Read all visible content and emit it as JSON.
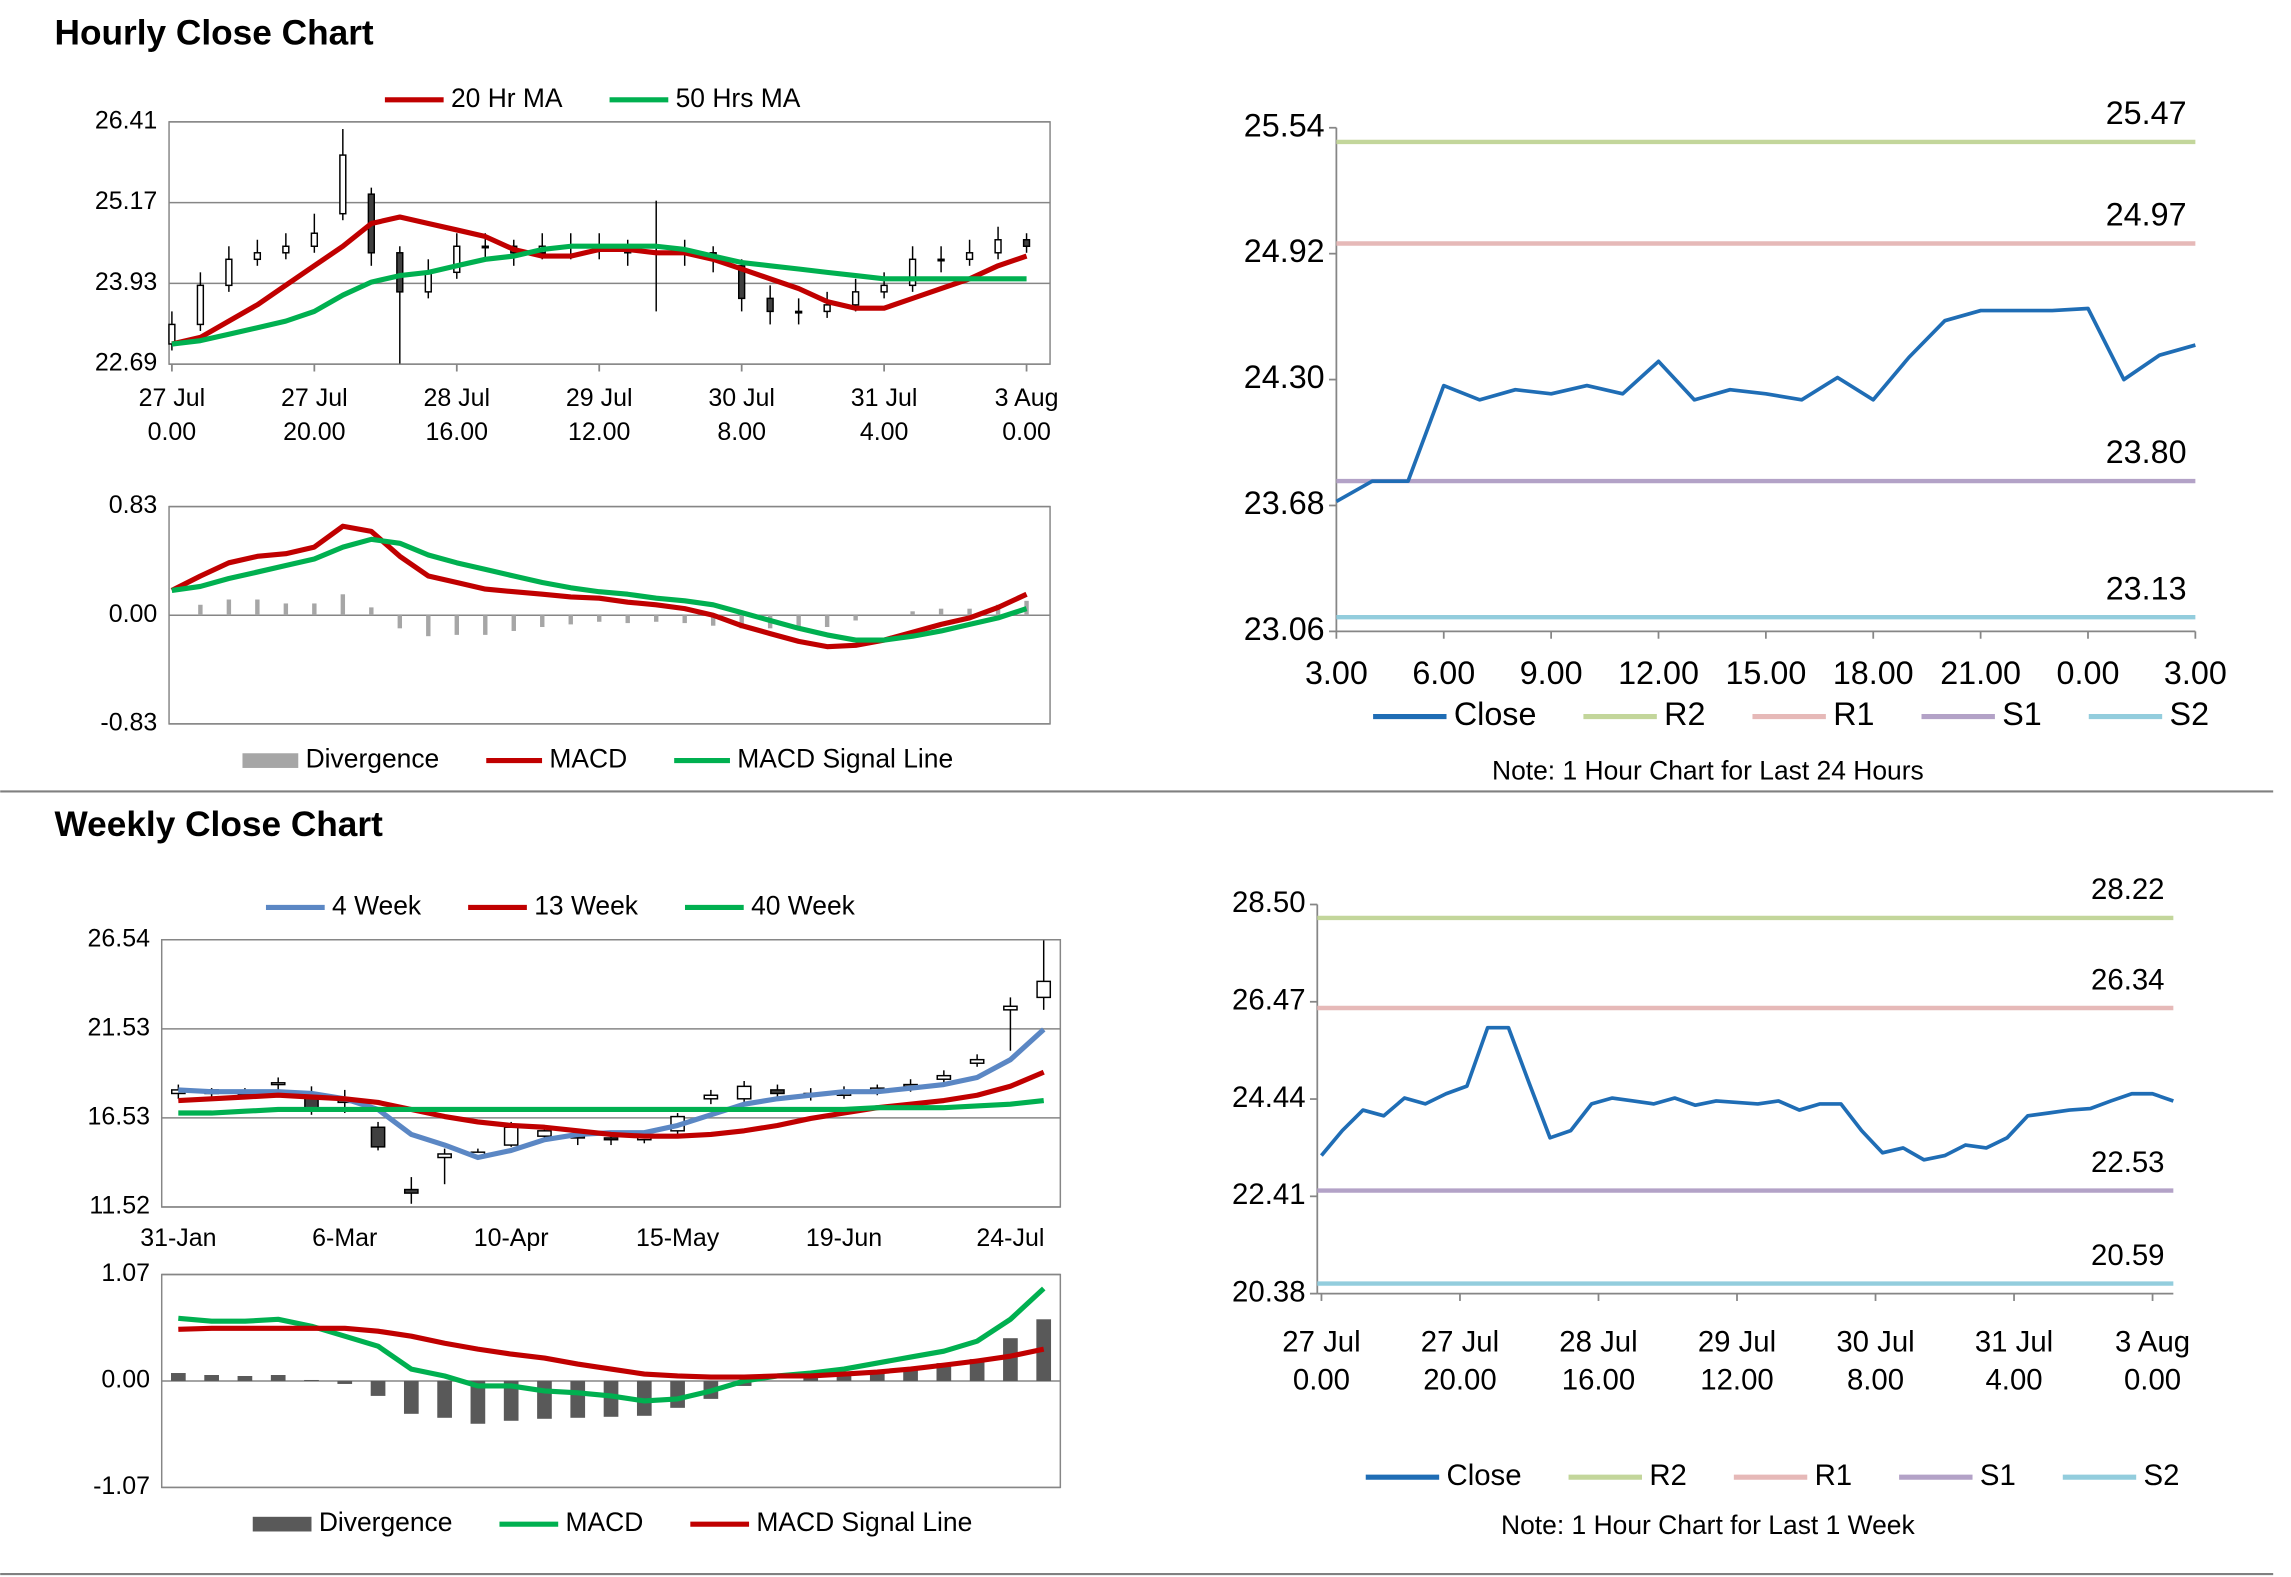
{
  "headings": [
    "Hourly Close Chart",
    "Weekly Close Chart"
  ],
  "chart_data": [
    {
      "type": "candlestick",
      "x": [
        0,
        4,
        8,
        12,
        16,
        20,
        24,
        28,
        32,
        36,
        40,
        44,
        48,
        52,
        56,
        60,
        64,
        68,
        72,
        76,
        80,
        84,
        88,
        92,
        96,
        100,
        104,
        108,
        112,
        116,
        120
      ],
      "xlim": [
        -0.4,
        123.3
      ],
      "xticks": [
        {
          "value": 0,
          "date": "27 Jul",
          "time": "0.00"
        },
        {
          "value": 20,
          "date": "27 Jul",
          "time": "20.00"
        },
        {
          "value": 40,
          "date": "28 Jul",
          "time": "16.00"
        },
        {
          "value": 60,
          "date": "29 Jul",
          "time": "12.00"
        },
        {
          "value": 80,
          "date": "30 Jul",
          "time": "8.00"
        },
        {
          "value": 100,
          "date": "31 Jul",
          "time": "4.00"
        },
        {
          "value": 120,
          "date": "3 Aug",
          "time": "0.00"
        }
      ],
      "open": [
        23.0,
        23.3,
        23.9,
        24.3,
        24.4,
        24.5,
        25.0,
        25.3,
        24.4,
        23.8,
        24.1,
        24.5,
        24.5,
        24.4,
        24.5,
        24.5,
        24.5,
        24.4,
        24.4,
        24.4,
        24.2,
        23.7,
        23.5,
        23.5,
        23.6,
        23.8,
        23.9,
        24.3,
        24.3,
        24.4,
        24.6
      ],
      "high": [
        23.5,
        24.1,
        24.5,
        24.6,
        24.7,
        25.0,
        26.3,
        25.4,
        24.5,
        24.3,
        24.7,
        24.7,
        24.6,
        24.7,
        24.7,
        24.7,
        24.6,
        25.2,
        24.6,
        24.5,
        24.3,
        23.9,
        23.7,
        23.8,
        24.0,
        24.1,
        24.5,
        24.5,
        24.6,
        24.8,
        24.7
      ],
      "low": [
        22.9,
        23.2,
        23.8,
        24.2,
        24.3,
        24.4,
        24.9,
        24.2,
        22.7,
        23.7,
        24.0,
        24.3,
        24.2,
        24.3,
        24.3,
        24.3,
        24.2,
        23.5,
        24.2,
        24.1,
        23.5,
        23.3,
        23.3,
        23.4,
        23.5,
        23.7,
        23.8,
        24.1,
        24.2,
        24.3,
        24.4
      ],
      "close": [
        23.3,
        23.9,
        24.3,
        24.4,
        24.5,
        24.7,
        25.9,
        24.4,
        23.8,
        24.1,
        24.5,
        24.5,
        24.4,
        24.5,
        24.5,
        24.5,
        24.4,
        24.4,
        24.4,
        24.3,
        23.7,
        23.5,
        23.5,
        23.6,
        23.8,
        23.9,
        24.3,
        24.3,
        24.4,
        24.6,
        24.5
      ],
      "series": [
        {
          "name": "20 Hr MA",
          "color": "#c00000",
          "values": [
            23.0,
            23.1,
            23.35,
            23.6,
            23.9,
            24.2,
            24.5,
            24.85,
            24.95,
            24.85,
            24.75,
            24.65,
            24.45,
            24.35,
            24.35,
            24.45,
            24.45,
            24.4,
            24.4,
            24.3,
            24.15,
            24.0,
            23.85,
            23.65,
            23.55,
            23.55,
            23.7,
            23.85,
            24.0,
            24.2,
            24.35
          ]
        },
        {
          "name": "50 Hrs MA",
          "color": "#00b050",
          "values": [
            23.0,
            23.05,
            23.15,
            23.25,
            23.35,
            23.5,
            23.75,
            23.95,
            24.05,
            24.1,
            24.2,
            24.3,
            24.35,
            24.45,
            24.5,
            24.5,
            24.5,
            24.5,
            24.45,
            24.35,
            24.25,
            24.2,
            24.15,
            24.1,
            24.05,
            24.0,
            24.0,
            24.0,
            24.0,
            24.0,
            24.0
          ]
        }
      ],
      "ylim": [
        22.69,
        26.41
      ],
      "yticks": [
        22.69,
        23.93,
        25.17,
        26.41
      ],
      "grid": true
    },
    {
      "type": "macd",
      "x": [
        0,
        4,
        8,
        12,
        16,
        20,
        24,
        28,
        32,
        36,
        40,
        44,
        48,
        52,
        56,
        60,
        64,
        68,
        72,
        76,
        80,
        84,
        88,
        92,
        96,
        100,
        104,
        108,
        112,
        116,
        120
      ],
      "xlim": [
        -0.4,
        123.3
      ],
      "series": [
        {
          "name": "Divergence",
          "kind": "bar",
          "color": "#a6a6a6",
          "values": [
            0,
            0.08,
            0.12,
            0.12,
            0.09,
            0.09,
            0.16,
            0.06,
            -0.1,
            -0.16,
            -0.15,
            -0.15,
            -0.12,
            -0.09,
            -0.07,
            -0.05,
            -0.06,
            -0.05,
            -0.06,
            -0.08,
            -0.1,
            -0.1,
            -0.1,
            -0.09,
            -0.04,
            0,
            0.03,
            0.05,
            0.05,
            0.08,
            0.11
          ]
        },
        {
          "name": "MACD",
          "color": "#c00000",
          "values": [
            0.19,
            0.3,
            0.4,
            0.45,
            0.47,
            0.52,
            0.68,
            0.64,
            0.45,
            0.3,
            0.25,
            0.2,
            0.18,
            0.16,
            0.14,
            0.13,
            0.1,
            0.08,
            0.05,
            0.0,
            -0.08,
            -0.14,
            -0.2,
            -0.24,
            -0.23,
            -0.19,
            -0.13,
            -0.07,
            -0.02,
            0.06,
            0.16
          ]
        },
        {
          "name": "MACD Signal Line",
          "color": "#00b050",
          "values": [
            0.19,
            0.22,
            0.28,
            0.33,
            0.38,
            0.43,
            0.52,
            0.58,
            0.55,
            0.46,
            0.4,
            0.35,
            0.3,
            0.25,
            0.21,
            0.18,
            0.16,
            0.13,
            0.11,
            0.08,
            0.02,
            -0.04,
            -0.1,
            -0.15,
            -0.19,
            -0.19,
            -0.16,
            -0.12,
            -0.07,
            -0.02,
            0.05
          ]
        }
      ],
      "ylim": [
        -0.83,
        0.83
      ],
      "yticks": [
        -0.83,
        {
          "value": 0,
          "label": "0.00"
        },
        0.83
      ],
      "grid": true
    },
    {
      "type": "line",
      "x": [
        0,
        1,
        2,
        3,
        4,
        5,
        6,
        7,
        8,
        9,
        10,
        11,
        12,
        13,
        14,
        15,
        16,
        17,
        18,
        19,
        20,
        21,
        22,
        23,
        24
      ],
      "xlim": [
        0,
        24
      ],
      "xticks": [
        {
          "value": 0,
          "label": "3.00"
        },
        {
          "value": 3,
          "label": "6.00"
        },
        {
          "value": 6,
          "label": "9.00"
        },
        {
          "value": 9,
          "label": "12.00"
        },
        {
          "value": 12,
          "label": "15.00"
        },
        {
          "value": 15,
          "label": "18.00"
        },
        {
          "value": 18,
          "label": "21.00"
        },
        {
          "value": 21,
          "label": "0.00"
        },
        {
          "value": 24,
          "label": "3.00"
        }
      ],
      "series": [
        {
          "name": "Close",
          "color": "#1f6db5",
          "values": [
            23.7,
            23.8,
            23.8,
            24.27,
            24.2,
            24.25,
            24.23,
            24.27,
            24.23,
            24.39,
            24.2,
            24.25,
            24.23,
            24.2,
            24.31,
            24.2,
            24.41,
            24.59,
            24.64,
            24.64,
            24.64,
            24.65,
            24.3,
            24.42,
            24.47
          ]
        }
      ],
      "levels": [
        {
          "name": "R2",
          "color": "#c3d69b",
          "value": 25.47
        },
        {
          "name": "R1",
          "color": "#e6b9b8",
          "value": 24.97
        },
        {
          "name": "S1",
          "color": "#b3a2c7",
          "value": 23.8,
          "value_label": "23.80"
        },
        {
          "name": "S2",
          "color": "#93cddd",
          "value": 23.13
        }
      ],
      "ylim": [
        23.06,
        25.54
      ],
      "yticks": [
        23.06,
        23.68,
        {
          "value": 24.3,
          "label": "24.30"
        },
        24.92,
        25.54
      ],
      "note": "Note: 1 Hour Chart for Last 24 Hours"
    },
    {
      "type": "candlestick",
      "categories": [
        "31-Jan",
        null,
        null,
        null,
        null,
        "6-Mar",
        null,
        null,
        null,
        null,
        "10-Apr",
        null,
        null,
        null,
        null,
        "15-May",
        null,
        null,
        null,
        null,
        "19-Jun",
        null,
        null,
        null,
        null,
        "24-Jul",
        null
      ],
      "open": [
        17.9,
        18.1,
        17.9,
        18.4,
        17.9,
        17.4,
        16.0,
        12.5,
        14.3,
        14.4,
        15.0,
        15.5,
        15.6,
        15.4,
        15.3,
        15.8,
        17.6,
        17.6,
        18.1,
        17.8,
        17.8,
        18.0,
        18.3,
        18.7,
        19.6,
        22.6,
        23.3
      ],
      "high": [
        18.4,
        18.2,
        18.2,
        18.8,
        18.3,
        18.1,
        16.3,
        13.2,
        14.8,
        14.8,
        16.3,
        16.1,
        15.9,
        15.8,
        15.8,
        16.8,
        18.1,
        18.6,
        18.4,
        18.2,
        18.3,
        18.4,
        18.7,
        19.2,
        20.1,
        23.3,
        26.5
      ],
      "low": [
        17.6,
        17.7,
        17.6,
        18.1,
        16.7,
        16.8,
        14.7,
        11.7,
        12.8,
        14.2,
        14.9,
        15.3,
        15.0,
        15.0,
        15.1,
        15.6,
        17.3,
        17.4,
        17.6,
        17.5,
        17.6,
        17.8,
        18.0,
        18.5,
        19.4,
        20.3,
        22.6
      ],
      "close": [
        18.1,
        17.9,
        17.9,
        18.5,
        16.9,
        17.5,
        14.9,
        12.3,
        14.5,
        14.6,
        16.0,
        15.8,
        15.4,
        15.3,
        15.5,
        16.6,
        17.8,
        18.3,
        17.9,
        17.9,
        18.0,
        18.2,
        18.4,
        18.9,
        19.8,
        22.8,
        24.2
      ],
      "series": [
        {
          "name": "4 Week",
          "color": "#5b87c4",
          "values": [
            18.1,
            18.0,
            18.0,
            18.0,
            17.9,
            17.6,
            17.0,
            15.6,
            15.0,
            14.3,
            14.7,
            15.3,
            15.6,
            15.7,
            15.7,
            16.1,
            16.7,
            17.3,
            17.6,
            17.8,
            18.0,
            18.0,
            18.2,
            18.4,
            18.8,
            19.8,
            21.5
          ]
        },
        {
          "name": "13 Week",
          "color": "#c00000",
          "values": [
            17.5,
            17.6,
            17.7,
            17.8,
            17.7,
            17.6,
            17.4,
            17.0,
            16.6,
            16.3,
            16.1,
            16.0,
            15.8,
            15.6,
            15.5,
            15.5,
            15.6,
            15.8,
            16.1,
            16.5,
            16.8,
            17.1,
            17.3,
            17.5,
            17.8,
            18.3,
            19.1
          ]
        },
        {
          "name": "40 Week",
          "color": "#00b050",
          "values": [
            16.8,
            16.8,
            16.9,
            17.0,
            17.0,
            17.0,
            17.0,
            17.0,
            17.0,
            17.0,
            17.0,
            17.0,
            17.0,
            17.0,
            17.0,
            17.0,
            17.0,
            17.0,
            17.0,
            17.0,
            17.0,
            17.1,
            17.1,
            17.1,
            17.2,
            17.3,
            17.5
          ]
        }
      ],
      "ylim": [
        11.52,
        26.54
      ],
      "yticks": [
        11.52,
        16.53,
        21.53,
        26.54
      ],
      "grid": true
    },
    {
      "type": "macd",
      "series": [
        {
          "name": "Divergence",
          "kind": "bar",
          "color": "#595959",
          "values": [
            0.08,
            0.06,
            0.05,
            0.06,
            0.01,
            -0.03,
            -0.15,
            -0.33,
            -0.37,
            -0.43,
            -0.4,
            -0.38,
            -0.37,
            -0.36,
            -0.35,
            -0.27,
            -0.18,
            -0.05,
            0.0,
            0.03,
            0.05,
            0.08,
            0.12,
            0.18,
            0.22,
            0.43,
            0.62
          ]
        },
        {
          "name": "MACD",
          "color": "#00b050",
          "values": [
            0.63,
            0.6,
            0.6,
            0.62,
            0.55,
            0.45,
            0.35,
            0.12,
            0.05,
            -0.05,
            -0.05,
            -0.1,
            -0.12,
            -0.15,
            -0.2,
            -0.18,
            -0.1,
            0.0,
            0.05,
            0.08,
            0.12,
            0.18,
            0.24,
            0.3,
            0.4,
            0.62,
            0.93
          ]
        },
        {
          "name": "MACD Signal Line",
          "color": "#c00000",
          "values": [
            0.52,
            0.53,
            0.53,
            0.53,
            0.53,
            0.53,
            0.5,
            0.45,
            0.38,
            0.32,
            0.27,
            0.23,
            0.17,
            0.12,
            0.07,
            0.05,
            0.04,
            0.04,
            0.05,
            0.05,
            0.07,
            0.09,
            0.12,
            0.16,
            0.2,
            0.25,
            0.32
          ]
        }
      ],
      "ylim": [
        -1.07,
        1.07
      ],
      "yticks": [
        -1.07,
        {
          "value": 0,
          "label": "0.00"
        },
        1.07
      ],
      "grid": true
    },
    {
      "type": "line",
      "x": [
        0,
        3,
        6,
        9,
        12,
        15,
        18,
        21,
        24,
        27,
        30,
        33,
        36,
        39,
        42,
        45,
        48,
        51,
        54,
        57,
        60,
        63,
        66,
        69,
        72,
        75,
        78,
        81,
        84,
        87,
        90,
        93,
        96,
        99,
        102,
        105,
        108,
        111,
        114,
        117,
        120,
        123
      ],
      "xlim": [
        -0.6,
        123
      ],
      "xticks": [
        {
          "value": 0,
          "date": "27 Jul",
          "time": "0.00"
        },
        {
          "value": 20,
          "date": "27 Jul",
          "time": "20.00"
        },
        {
          "value": 40,
          "date": "28 Jul",
          "time": "16.00"
        },
        {
          "value": 60,
          "date": "29 Jul",
          "time": "12.00"
        },
        {
          "value": 80,
          "date": "30 Jul",
          "time": "8.00"
        },
        {
          "value": 100,
          "date": "31 Jul",
          "time": "4.00"
        },
        {
          "value": 120,
          "date": "3 Aug",
          "time": "0.00"
        }
      ],
      "series": [
        {
          "name": "Close",
          "color": "#1f6db5",
          "values": [
            23.26,
            23.78,
            24.21,
            24.09,
            24.46,
            24.34,
            24.55,
            24.71,
            25.93,
            25.93,
            24.77,
            23.63,
            23.78,
            24.34,
            24.46,
            24.4,
            24.34,
            24.46,
            24.31,
            24.4,
            24.37,
            24.34,
            24.4,
            24.21,
            24.34,
            24.34,
            23.78,
            23.32,
            23.42,
            23.17,
            23.26,
            23.48,
            23.42,
            23.63,
            24.09,
            24.15,
            24.21,
            24.24,
            24.4,
            24.55,
            24.55,
            24.4
          ]
        }
      ],
      "levels": [
        {
          "name": "R2",
          "color": "#c3d69b",
          "value": 28.22
        },
        {
          "name": "R1",
          "color": "#e6b9b8",
          "value": 26.34
        },
        {
          "name": "S1",
          "color": "#b3a2c7",
          "value": 22.53
        },
        {
          "name": "S2",
          "color": "#93cddd",
          "value": 20.59
        }
      ],
      "ylim": [
        20.38,
        28.5
      ],
      "yticks": [
        20.38,
        22.41,
        24.44,
        26.47,
        {
          "value": 28.5,
          "label": "28.50"
        }
      ],
      "note": "Note: 1 Hour Chart for Last 1 Week"
    }
  ]
}
